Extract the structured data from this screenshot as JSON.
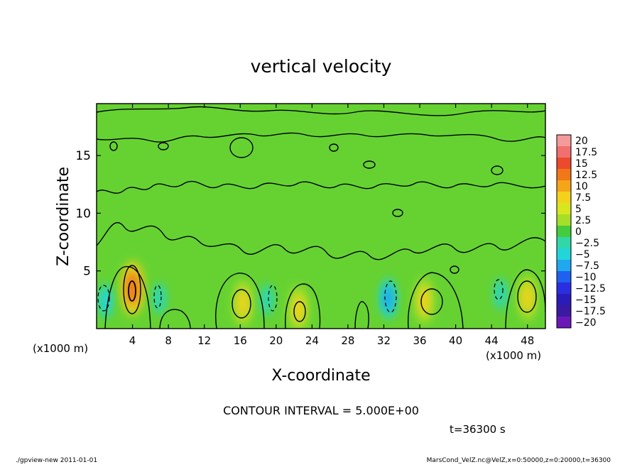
{
  "chart_data": {
    "type": "heatmap",
    "title": "vertical velocity",
    "xlabel": "X-coordinate",
    "ylabel": "Z-coordinate",
    "x_unit_left": "(x1000 m)",
    "x_unit_right": "(x1000 m)",
    "xlim": [
      0,
      50
    ],
    "ylim": [
      0,
      19.5
    ],
    "x_ticks": [
      4,
      8,
      12,
      16,
      20,
      24,
      28,
      32,
      36,
      40,
      44,
      48
    ],
    "y_ticks": [
      5,
      10,
      15
    ],
    "colorbar": {
      "labels": [
        "20",
        "17.5",
        "15",
        "12.5",
        "10",
        "7.5",
        "5",
        "2.5",
        "0",
        "−2.5",
        "−5",
        "−7.5",
        "−10",
        "−12.5",
        "−15",
        "−17.5",
        "−20"
      ],
      "colors": [
        "#f59a9a",
        "#f07070",
        "#ec4a2c",
        "#f07818",
        "#f6a41a",
        "#f2d21c",
        "#d8e620",
        "#a6df2a",
        "#44cc3c",
        "#32d7a8",
        "#22d6d8",
        "#1fa8ee",
        "#1f60ee",
        "#2a2ee0",
        "#2a1cb8",
        "#3a1aa0",
        "#6a18b8"
      ]
    },
    "contour_interval": "CONTOUR INTERVAL = 5.000E+00",
    "features": [
      {
        "type": "updraft",
        "x": 4.0,
        "z": 3.5,
        "peak": 12
      },
      {
        "type": "updraft",
        "x": 16.3,
        "z": 2.2,
        "peak": 7.5
      },
      {
        "type": "updraft",
        "x": 22.5,
        "z": 1.7,
        "peak": 7.5
      },
      {
        "type": "updraft",
        "x": 36.5,
        "z": 2.4,
        "peak": 7.5
      },
      {
        "type": "updraft",
        "x": 48.0,
        "z": 2.7,
        "peak": 7.5
      },
      {
        "type": "downdraft",
        "x": 1.0,
        "z": 2.4,
        "peak": -5
      },
      {
        "type": "downdraft",
        "x": 7.0,
        "z": 2.6,
        "peak": -3
      },
      {
        "type": "downdraft",
        "x": 19.0,
        "z": 2.5,
        "peak": -3
      },
      {
        "type": "downdraft",
        "x": 32.5,
        "z": 2.6,
        "peak": -7
      },
      {
        "type": "downdraft",
        "x": 45.0,
        "z": 3.0,
        "peak": -3
      }
    ]
  },
  "time_label": "t=36300 s",
  "footer_left": "./gpview-new   2011-01-01",
  "footer_right": "MarsCond_VelZ.nc@VelZ,x=0:50000,z=0:20000,t=36300"
}
